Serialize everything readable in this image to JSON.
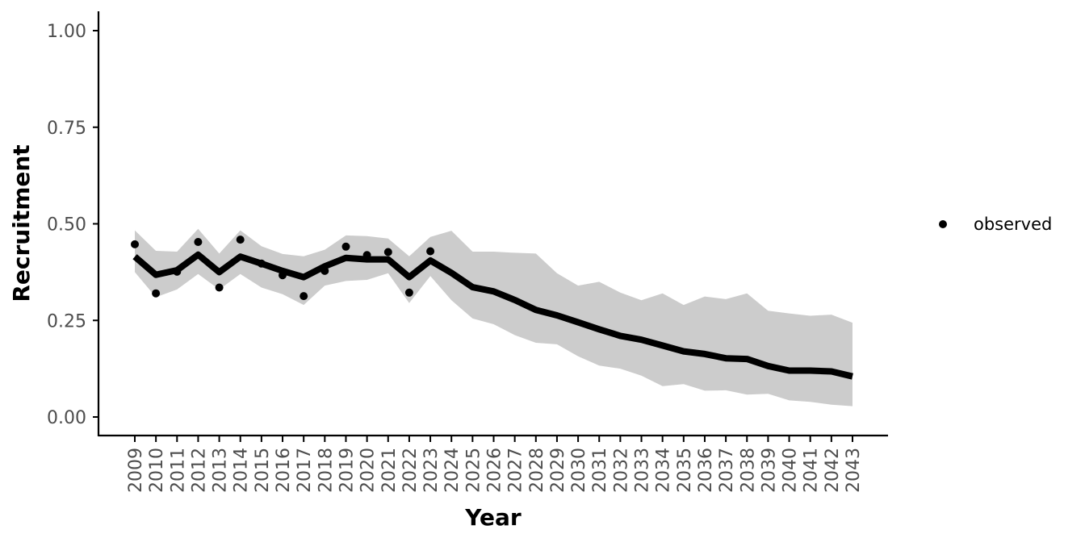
{
  "chart_data": {
    "type": "line",
    "xlabel": "Year",
    "ylabel": "Recruitment",
    "ylim": [
      0,
      1
    ],
    "yticks": [
      "0.00",
      "0.25",
      "0.50",
      "0.75",
      "1.00"
    ],
    "ytick_values": [
      0,
      0.25,
      0.5,
      0.75,
      1.0
    ],
    "x": [
      2009,
      2010,
      2011,
      2012,
      2013,
      2014,
      2015,
      2016,
      2017,
      2018,
      2019,
      2020,
      2021,
      2022,
      2023,
      2024,
      2025,
      2026,
      2027,
      2028,
      2029,
      2030,
      2031,
      2032,
      2033,
      2034,
      2035,
      2036,
      2037,
      2038,
      2039,
      2040,
      2041,
      2042,
      2043
    ],
    "series": [
      {
        "type": "line",
        "values": [
          0.415,
          0.368,
          0.38,
          0.42,
          0.375,
          0.415,
          0.397,
          0.378,
          0.362,
          0.39,
          0.412,
          0.408,
          0.408,
          0.362,
          0.405,
          0.373,
          0.336,
          0.325,
          0.303,
          0.277,
          0.263,
          0.245,
          0.227,
          0.21,
          0.2,
          0.185,
          0.17,
          0.163,
          0.152,
          0.15,
          0.132,
          0.12,
          0.12,
          0.118,
          0.105
        ]
      },
      {
        "type": "ribbon",
        "lower": [
          0.375,
          0.31,
          0.33,
          0.37,
          0.33,
          0.37,
          0.335,
          0.318,
          0.29,
          0.34,
          0.352,
          0.355,
          0.372,
          0.295,
          0.365,
          0.302,
          0.255,
          0.24,
          0.212,
          0.192,
          0.188,
          0.157,
          0.133,
          0.125,
          0.107,
          0.08,
          0.085,
          0.068,
          0.069,
          0.058,
          0.06,
          0.043,
          0.039,
          0.032,
          0.028
        ],
        "upper": [
          0.483,
          0.43,
          0.428,
          0.487,
          0.423,
          0.483,
          0.442,
          0.422,
          0.416,
          0.433,
          0.47,
          0.468,
          0.462,
          0.416,
          0.466,
          0.482,
          0.428,
          0.428,
          0.425,
          0.423,
          0.372,
          0.34,
          0.35,
          0.322,
          0.302,
          0.32,
          0.29,
          0.312,
          0.305,
          0.32,
          0.275,
          0.268,
          0.262,
          0.265,
          0.244
        ]
      },
      {
        "name": "observed",
        "type": "points",
        "x": [
          2009,
          2010,
          2011,
          2012,
          2013,
          2014,
          2015,
          2016,
          2017,
          2018,
          2019,
          2020,
          2021,
          2022,
          2023
        ],
        "values": [
          0.447,
          0.32,
          0.376,
          0.453,
          0.335,
          0.459,
          0.397,
          0.367,
          0.313,
          0.378,
          0.441,
          0.419,
          0.427,
          0.322,
          0.429
        ]
      }
    ],
    "legend": {
      "position": "right",
      "entries": [
        "observed"
      ]
    },
    "grid": false,
    "colors": {
      "line": "#000000",
      "ribbon": "#cccccc",
      "points": "#000000",
      "axis": "#000000",
      "tick_text": "#4d4d4d"
    }
  }
}
